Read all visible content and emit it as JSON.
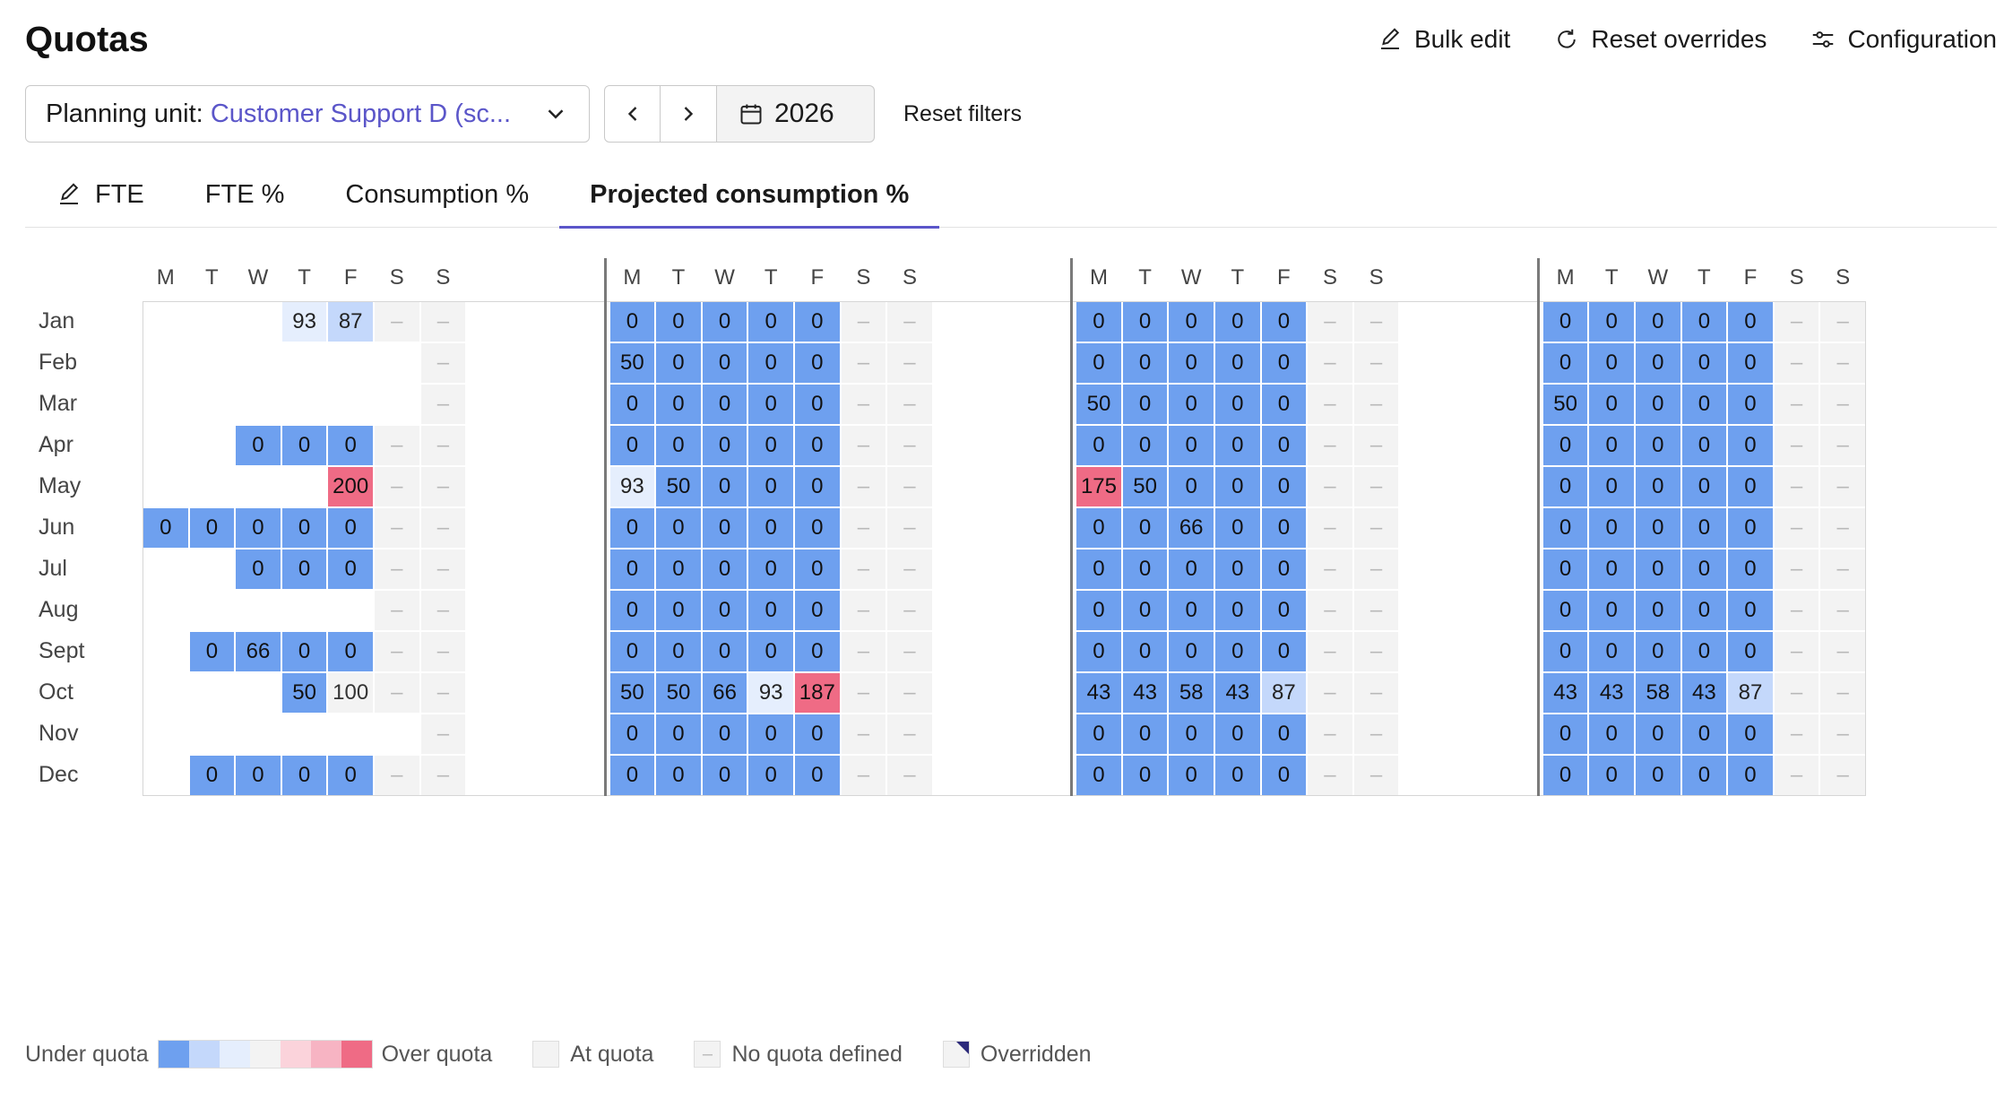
{
  "page": {
    "title": "Quotas",
    "actions": {
      "bulk_edit": "Bulk edit",
      "reset_overrides": "Reset overrides",
      "configuration": "Configuration"
    }
  },
  "filters": {
    "unit_label": "Planning unit: ",
    "unit_value": "Customer Support D (sc...",
    "year": "2026",
    "reset": "Reset filters"
  },
  "tabs": [
    {
      "label": "FTE",
      "icon": "pencil-icon"
    },
    {
      "label": "FTE %"
    },
    {
      "label": "Consumption %"
    },
    {
      "label": "Projected consumption %",
      "active": true
    }
  ],
  "day_headers": [
    "M",
    "T",
    "W",
    "T",
    "F",
    "S",
    "S"
  ],
  "months": [
    "Jan",
    "Feb",
    "Mar",
    "Apr",
    "May",
    "Jun",
    "Jul",
    "Aug",
    "Sept",
    "Oct",
    "Nov",
    "Dec"
  ],
  "none_glyph": "–",
  "colors": {
    "blue": "#6ea0ef",
    "mid": "#c4d8fb",
    "light": "#e5eefd",
    "quota": "#f3f3f3",
    "red": "#ef6b85",
    "accent": "#5b56c9"
  },
  "grid": [
    [
      "",
      "",
      "",
      "l93",
      "m87",
      "-",
      "-",
      "b0",
      "b0",
      "b0",
      "b0",
      "b0",
      "-",
      "-",
      "b0",
      "b0",
      "b0",
      "b0",
      "b0",
      "-",
      "-",
      "b0",
      "b0",
      "b0",
      "b0",
      "b0",
      "-",
      "-"
    ],
    [
      "",
      "",
      "",
      "",
      "",
      "",
      "-",
      "b50",
      "b0",
      "b0",
      "b0",
      "b0",
      "-",
      "-",
      "b0",
      "b0",
      "b0",
      "b0",
      "b0",
      "-",
      "-",
      "b0",
      "b0",
      "b0",
      "b0",
      "b0",
      "-",
      "-"
    ],
    [
      "",
      "",
      "",
      "",
      "",
      "",
      "-",
      "b0",
      "b0",
      "b0",
      "b0",
      "b0",
      "-",
      "-",
      "b50",
      "b0",
      "b0",
      "b0",
      "b0",
      "-",
      "-",
      "b50",
      "b0",
      "b0",
      "b0",
      "b0",
      "-",
      "-"
    ],
    [
      "",
      "",
      "b0",
      "b0",
      "b0",
      "-",
      "-",
      "b0",
      "b0",
      "b0",
      "b0",
      "b0",
      "-",
      "-",
      "b0",
      "b0",
      "b0",
      "b0",
      "b0",
      "-",
      "-",
      "b0",
      "b0",
      "b0",
      "b0",
      "b0",
      "-",
      "-"
    ],
    [
      "",
      "",
      "",
      "",
      "r200",
      "-",
      "-",
      "l93",
      "b50",
      "b0",
      "b0",
      "b0",
      "-",
      "-",
      "r175",
      "b50",
      "b0",
      "b0",
      "b0",
      "-",
      "-",
      "b0",
      "b0",
      "b0",
      "b0",
      "b0",
      "-",
      "-"
    ],
    [
      "b0",
      "b0",
      "b0",
      "b0",
      "b0",
      "-",
      "-",
      "b0",
      "b0",
      "b0",
      "b0",
      "b0",
      "-",
      "-",
      "b0",
      "b0",
      "b66",
      "b0",
      "b0",
      "-",
      "-",
      "b0",
      "b0",
      "b0",
      "b0",
      "b0",
      "-",
      "-"
    ],
    [
      "",
      "",
      "b0",
      "b0",
      "b0",
      "-",
      "-",
      "b0",
      "b0",
      "b0",
      "b0",
      "b0",
      "-",
      "-",
      "b0",
      "b0",
      "b0",
      "b0",
      "b0",
      "-",
      "-",
      "b0",
      "b0",
      "b0",
      "b0",
      "b0",
      "-",
      "-"
    ],
    [
      "",
      "",
      "",
      "",
      "",
      "-",
      "-",
      "b0",
      "b0",
      "b0",
      "b0",
      "b0",
      "-",
      "-",
      "b0",
      "b0",
      "b0",
      "b0",
      "b0",
      "-",
      "-",
      "b0",
      "b0",
      "b0",
      "b0",
      "b0",
      "-",
      "-"
    ],
    [
      "",
      "b0",
      "b66",
      "b0",
      "b0",
      "-",
      "-",
      "b0",
      "b0",
      "b0",
      "b0",
      "b0",
      "-",
      "-",
      "b0",
      "b0",
      "b0",
      "b0",
      "b0",
      "-",
      "-",
      "b0",
      "b0",
      "b0",
      "b0",
      "b0",
      "-",
      "-"
    ],
    [
      "",
      "",
      "",
      "b50",
      "q100",
      "-",
      "-",
      "b50",
      "b50",
      "b66",
      "l93",
      "r187",
      "-",
      "-",
      "b43",
      "b43",
      "b58",
      "b43",
      "m87",
      "-",
      "-",
      "b43",
      "b43",
      "b58",
      "b43",
      "m87",
      "-",
      "-"
    ],
    [
      "",
      "",
      "",
      "",
      "",
      "",
      "-",
      "b0",
      "b0",
      "b0",
      "b0",
      "b0",
      "-",
      "-",
      "b0",
      "b0",
      "b0",
      "b0",
      "b0",
      "-",
      "-",
      "b0",
      "b0",
      "b0",
      "b0",
      "b0",
      "-",
      "-"
    ],
    [
      "",
      "b0",
      "b0",
      "b0",
      "b0",
      "-",
      "-",
      "b0",
      "b0",
      "b0",
      "b0",
      "b0",
      "-",
      "-",
      "b0",
      "b0",
      "b0",
      "b0",
      "b0",
      "-",
      "-",
      "b0",
      "b0",
      "b0",
      "b0",
      "b0",
      "-",
      "-"
    ]
  ],
  "legend": {
    "under": "Under quota",
    "over": "Over quota",
    "at": "At quota",
    "none": "No quota defined",
    "overridden": "Overridden",
    "gradient": [
      "#6ea0ef",
      "#c4d8fb",
      "#e5eefd",
      "#f3f3f3",
      "#fbd3db",
      "#f7b4c3",
      "#ef6b85"
    ]
  }
}
